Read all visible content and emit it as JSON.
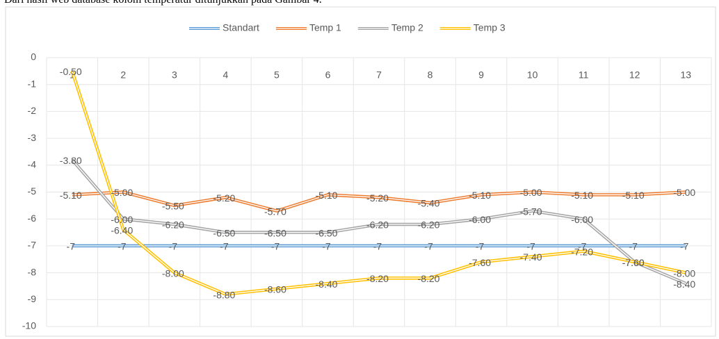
{
  "caption": "Dari hasil web database kolom temperatur ditunjukkan pada Gambar 4.",
  "chart_data": {
    "type": "line",
    "categories": [
      "1",
      "2",
      "3",
      "4",
      "5",
      "6",
      "7",
      "8",
      "9",
      "10",
      "11",
      "12",
      "13"
    ],
    "ylim": [
      -10,
      0
    ],
    "yticks": [
      0,
      -1,
      -2,
      -3,
      -4,
      -5,
      -6,
      -7,
      -8,
      -9,
      -10
    ],
    "grid": true,
    "legend": "top",
    "series": [
      {
        "name": "Standart",
        "color": "#5b9bd5",
        "values": [
          -7,
          -7,
          -7,
          -7,
          -7,
          -7,
          -7,
          -7,
          -7,
          -7,
          -7,
          -7,
          -7
        ]
      },
      {
        "name": "Temp 1",
        "color": "#ed7d31",
        "values": [
          -5.1,
          -5.0,
          -5.5,
          -5.2,
          -5.7,
          -5.1,
          -5.2,
          -5.4,
          -5.1,
          -5.0,
          -5.1,
          -5.1,
          -5.0
        ],
        "value_labels": [
          "-5.10",
          "-5.00",
          "-5.50",
          "-5.20",
          "-5.70",
          "-5.10",
          "-5.20",
          "-5.40",
          "-5.10",
          "-5.00",
          "-5.10",
          "-5.10",
          "-5.00"
        ]
      },
      {
        "name": "Temp 2",
        "color": "#a5a5a5",
        "values": [
          -3.8,
          -6.0,
          -6.2,
          -6.5,
          -6.5,
          -6.5,
          -6.2,
          -6.2,
          -6.0,
          -5.7,
          -6.0,
          -7.6,
          -8.4
        ],
        "value_labels": [
          "-3.80",
          "-6.00",
          "-6.20",
          "-6.50",
          "-6.50",
          "-6.50",
          "-6.20",
          "-6.20",
          "-6.00",
          "-5.70",
          "-6.00",
          "-7.60",
          "-8.40"
        ]
      },
      {
        "name": "Temp 3",
        "color": "#ffc000",
        "values": [
          -0.5,
          -6.4,
          -8.0,
          -8.8,
          -8.6,
          -8.4,
          -8.2,
          -8.2,
          -7.6,
          -7.4,
          -7.2,
          -7.6,
          -8.0
        ],
        "value_labels": [
          "-0.50",
          "-6.40",
          "-8.00",
          "-8.80",
          "-8.60",
          "-8.40",
          "-8.20",
          "-8.20",
          "-7.60",
          "-7.40",
          "-7.20",
          "-7.60",
          "-8.00"
        ]
      }
    ]
  }
}
